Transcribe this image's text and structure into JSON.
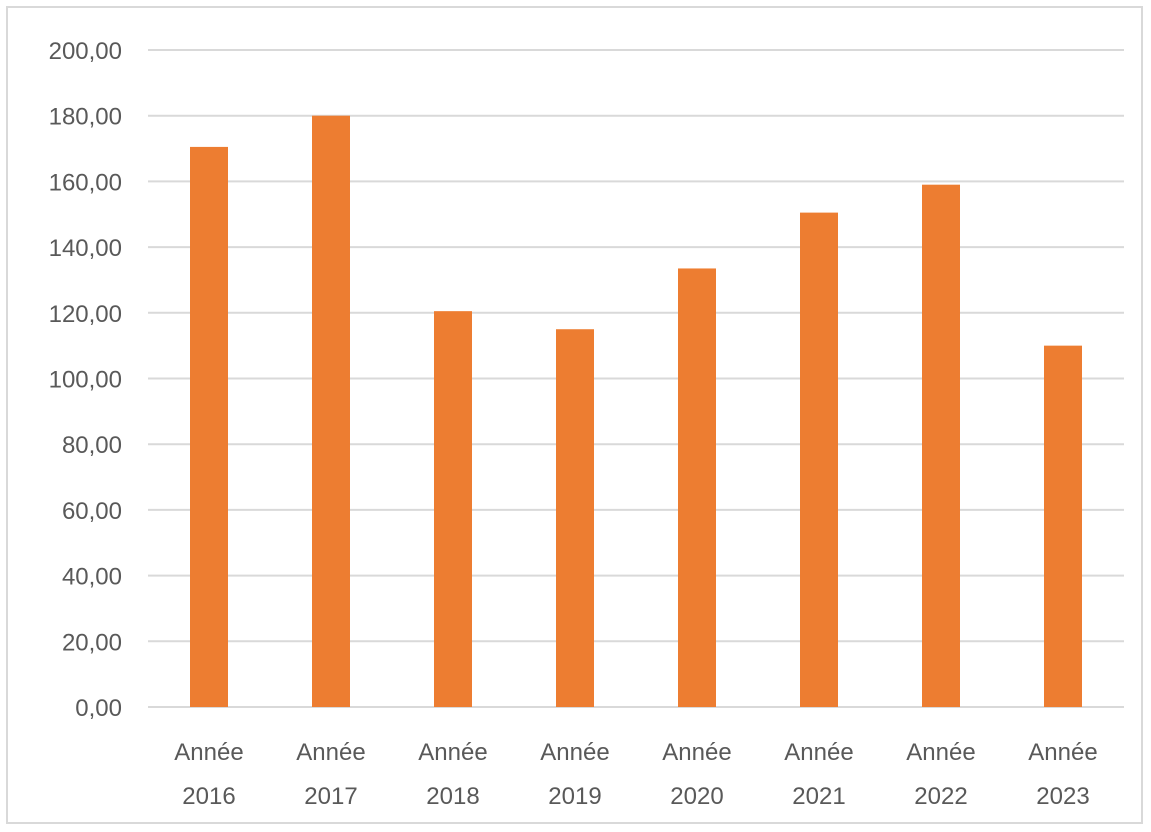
{
  "chart_data": {
    "type": "bar",
    "title": "",
    "xlabel": "",
    "ylabel": "",
    "ylim": [
      0,
      200
    ],
    "y_tick_step": 20,
    "y_tick_labels": [
      "0,00",
      "20,00",
      "40,00",
      "60,00",
      "80,00",
      "100,00",
      "120,00",
      "140,00",
      "160,00",
      "180,00",
      "200,00"
    ],
    "grid": "horizontal",
    "legend": "none",
    "bar_color": "#ED7D31",
    "grid_color": "#D9D9D9",
    "categories": [
      [
        "Année",
        "2016"
      ],
      [
        "Année",
        "2017"
      ],
      [
        "Année",
        "2018"
      ],
      [
        "Année",
        "2019"
      ],
      [
        "Année",
        "2020"
      ],
      [
        "Année",
        "2021"
      ],
      [
        "Année",
        "2022"
      ],
      [
        "Année",
        "2023"
      ]
    ],
    "values": [
      170.5,
      180,
      120.5,
      115,
      133.5,
      150.5,
      159,
      110
    ]
  }
}
